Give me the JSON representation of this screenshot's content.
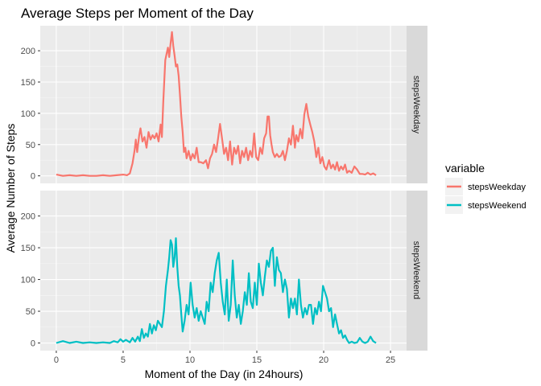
{
  "chart_data": {
    "type": "line",
    "title": "Average Steps per Moment of the Day",
    "xlabel": "Moment of the Day (in 24hours)",
    "ylabel": "Average Number of Steps",
    "xlim": [
      -1.2,
      26.2
    ],
    "ylim": [
      -12,
      240
    ],
    "x_ticks": [
      0,
      5,
      10,
      15,
      20,
      25
    ],
    "y_ticks": [
      0,
      50,
      100,
      150,
      200
    ],
    "grid": true,
    "facets": [
      "stepsWeekday",
      "stepsWeekend"
    ],
    "legend": {
      "title": "variable",
      "position": "right",
      "entries": [
        "stepsWeekday",
        "stepsWeekend"
      ]
    },
    "series": [
      {
        "name": "stepsWeekday",
        "color": "#F8766D",
        "points": [
          [
            0.0,
            2
          ],
          [
            0.5,
            0
          ],
          [
            1.0,
            1
          ],
          [
            1.5,
            0
          ],
          [
            2.0,
            1
          ],
          [
            2.5,
            0
          ],
          [
            3.0,
            0
          ],
          [
            3.5,
            1
          ],
          [
            4.0,
            0
          ],
          [
            4.5,
            1
          ],
          [
            5.0,
            2
          ],
          [
            5.3,
            1
          ],
          [
            5.5,
            4
          ],
          [
            5.7,
            20
          ],
          [
            5.85,
            40
          ],
          [
            5.95,
            58
          ],
          [
            6.05,
            38
          ],
          [
            6.2,
            65
          ],
          [
            6.3,
            76
          ],
          [
            6.45,
            55
          ],
          [
            6.6,
            62
          ],
          [
            6.75,
            45
          ],
          [
            6.9,
            70
          ],
          [
            7.05,
            58
          ],
          [
            7.2,
            65
          ],
          [
            7.35,
            60
          ],
          [
            7.5,
            68
          ],
          [
            7.65,
            55
          ],
          [
            7.8,
            82
          ],
          [
            7.9,
            62
          ],
          [
            8.0,
            118
          ],
          [
            8.15,
            185
          ],
          [
            8.25,
            195
          ],
          [
            8.35,
            205
          ],
          [
            8.45,
            190
          ],
          [
            8.55,
            212
          ],
          [
            8.65,
            230
          ],
          [
            8.75,
            208
          ],
          [
            8.85,
            192
          ],
          [
            8.95,
            175
          ],
          [
            9.05,
            178
          ],
          [
            9.15,
            160
          ],
          [
            9.25,
            130
          ],
          [
            9.35,
            95
          ],
          [
            9.45,
            70
          ],
          [
            9.55,
            38
          ],
          [
            9.65,
            45
          ],
          [
            9.75,
            28
          ],
          [
            9.9,
            40
          ],
          [
            10.05,
            25
          ],
          [
            10.2,
            35
          ],
          [
            10.35,
            28
          ],
          [
            10.5,
            45
          ],
          [
            10.65,
            22
          ],
          [
            10.8,
            22
          ],
          [
            11.0,
            20
          ],
          [
            11.2,
            25
          ],
          [
            11.35,
            12
          ],
          [
            11.5,
            28
          ],
          [
            11.65,
            35
          ],
          [
            11.8,
            50
          ],
          [
            11.95,
            38
          ],
          [
            12.1,
            60
          ],
          [
            12.25,
            83
          ],
          [
            12.4,
            60
          ],
          [
            12.55,
            35
          ],
          [
            12.7,
            45
          ],
          [
            12.85,
            25
          ],
          [
            13.0,
            55
          ],
          [
            13.15,
            18
          ],
          [
            13.3,
            45
          ],
          [
            13.45,
            35
          ],
          [
            13.6,
            48
          ],
          [
            13.75,
            20
          ],
          [
            13.9,
            40
          ],
          [
            14.05,
            30
          ],
          [
            14.2,
            45
          ],
          [
            14.35,
            25
          ],
          [
            14.5,
            40
          ],
          [
            14.65,
            30
          ],
          [
            14.8,
            68
          ],
          [
            14.95,
            30
          ],
          [
            15.1,
            25
          ],
          [
            15.25,
            45
          ],
          [
            15.4,
            35
          ],
          [
            15.55,
            60
          ],
          [
            15.7,
            68
          ],
          [
            15.8,
            95
          ],
          [
            15.9,
            95
          ],
          [
            16.0,
            65
          ],
          [
            16.1,
            50
          ],
          [
            16.2,
            38
          ],
          [
            16.35,
            30
          ],
          [
            16.5,
            35
          ],
          [
            16.65,
            30
          ],
          [
            16.8,
            32
          ],
          [
            16.95,
            40
          ],
          [
            17.1,
            25
          ],
          [
            17.25,
            40
          ],
          [
            17.4,
            60
          ],
          [
            17.55,
            50
          ],
          [
            17.7,
            80
          ],
          [
            17.85,
            45
          ],
          [
            17.95,
            65
          ],
          [
            18.1,
            55
          ],
          [
            18.25,
            75
          ],
          [
            18.4,
            60
          ],
          [
            18.55,
            98
          ],
          [
            18.7,
            115
          ],
          [
            18.85,
            95
          ],
          [
            19.0,
            82
          ],
          [
            19.15,
            70
          ],
          [
            19.3,
            55
          ],
          [
            19.45,
            30
          ],
          [
            19.6,
            45
          ],
          [
            19.75,
            20
          ],
          [
            19.9,
            30
          ],
          [
            20.05,
            15
          ],
          [
            20.2,
            10
          ],
          [
            20.4,
            25
          ],
          [
            20.55,
            12
          ],
          [
            20.7,
            18
          ],
          [
            20.85,
            10
          ],
          [
            21.0,
            22
          ],
          [
            21.15,
            8
          ],
          [
            21.3,
            15
          ],
          [
            21.45,
            10
          ],
          [
            21.6,
            18
          ],
          [
            21.75,
            5
          ],
          [
            21.9,
            8
          ],
          [
            22.1,
            5
          ],
          [
            22.3,
            15
          ],
          [
            22.5,
            10
          ],
          [
            22.7,
            3
          ],
          [
            22.9,
            3
          ],
          [
            23.1,
            2
          ],
          [
            23.3,
            5
          ],
          [
            23.5,
            2
          ],
          [
            23.7,
            4
          ],
          [
            23.92,
            1
          ]
        ]
      },
      {
        "name": "stepsWeekend",
        "color": "#00BFC4",
        "points": [
          [
            0.0,
            0
          ],
          [
            0.5,
            3
          ],
          [
            1.0,
            0
          ],
          [
            1.5,
            2
          ],
          [
            2.0,
            0
          ],
          [
            2.5,
            1
          ],
          [
            3.0,
            0
          ],
          [
            3.5,
            1
          ],
          [
            4.0,
            0
          ],
          [
            4.3,
            3
          ],
          [
            4.6,
            1
          ],
          [
            4.8,
            6
          ],
          [
            5.0,
            2
          ],
          [
            5.2,
            5
          ],
          [
            5.5,
            1
          ],
          [
            5.7,
            8
          ],
          [
            5.9,
            2
          ],
          [
            6.1,
            10
          ],
          [
            6.25,
            3
          ],
          [
            6.4,
            22
          ],
          [
            6.55,
            8
          ],
          [
            6.7,
            15
          ],
          [
            6.85,
            10
          ],
          [
            7.0,
            30
          ],
          [
            7.15,
            15
          ],
          [
            7.3,
            28
          ],
          [
            7.45,
            20
          ],
          [
            7.6,
            35
          ],
          [
            7.75,
            30
          ],
          [
            7.9,
            25
          ],
          [
            8.05,
            50
          ],
          [
            8.2,
            90
          ],
          [
            8.35,
            115
          ],
          [
            8.45,
            135
          ],
          [
            8.55,
            162
          ],
          [
            8.65,
            155
          ],
          [
            8.75,
            120
          ],
          [
            8.85,
            135
          ],
          [
            8.95,
            165
          ],
          [
            9.05,
            120
          ],
          [
            9.15,
            90
          ],
          [
            9.25,
            75
          ],
          [
            9.35,
            45
          ],
          [
            9.45,
            18
          ],
          [
            9.6,
            35
          ],
          [
            9.75,
            60
          ],
          [
            9.9,
            45
          ],
          [
            10.05,
            95
          ],
          [
            10.2,
            60
          ],
          [
            10.35,
            40
          ],
          [
            10.5,
            55
          ],
          [
            10.65,
            35
          ],
          [
            10.8,
            50
          ],
          [
            10.95,
            40
          ],
          [
            11.1,
            30
          ],
          [
            11.25,
            65
          ],
          [
            11.4,
            50
          ],
          [
            11.55,
            95
          ],
          [
            11.7,
            80
          ],
          [
            11.85,
            110
          ],
          [
            12.0,
            130
          ],
          [
            12.15,
            142
          ],
          [
            12.3,
            95
          ],
          [
            12.45,
            65
          ],
          [
            12.6,
            45
          ],
          [
            12.75,
            100
          ],
          [
            12.9,
            35
          ],
          [
            13.05,
            60
          ],
          [
            13.2,
            130
          ],
          [
            13.35,
            75
          ],
          [
            13.5,
            40
          ],
          [
            13.65,
            60
          ],
          [
            13.8,
            30
          ],
          [
            13.95,
            50
          ],
          [
            14.1,
            80
          ],
          [
            14.25,
            60
          ],
          [
            14.4,
            110
          ],
          [
            14.55,
            65
          ],
          [
            14.7,
            55
          ],
          [
            14.85,
            95
          ],
          [
            15.0,
            60
          ],
          [
            15.15,
            125
          ],
          [
            15.3,
            95
          ],
          [
            15.45,
            75
          ],
          [
            15.6,
            105
          ],
          [
            15.75,
            130
          ],
          [
            15.9,
            120
          ],
          [
            16.05,
            145
          ],
          [
            16.2,
            150
          ],
          [
            16.35,
            90
          ],
          [
            16.5,
            135
          ],
          [
            16.65,
            115
          ],
          [
            16.8,
            110
          ],
          [
            16.95,
            80
          ],
          [
            17.1,
            100
          ],
          [
            17.25,
            85
          ],
          [
            17.4,
            40
          ],
          [
            17.55,
            70
          ],
          [
            17.7,
            55
          ],
          [
            17.85,
            70
          ],
          [
            18.0,
            45
          ],
          [
            18.15,
            100
          ],
          [
            18.3,
            60
          ],
          [
            18.45,
            40
          ],
          [
            18.6,
            55
          ],
          [
            18.75,
            45
          ],
          [
            18.9,
            60
          ],
          [
            19.05,
            60
          ],
          [
            19.2,
            30
          ],
          [
            19.35,
            55
          ],
          [
            19.5,
            45
          ],
          [
            19.65,
            65
          ],
          [
            19.8,
            50
          ],
          [
            19.95,
            90
          ],
          [
            20.1,
            80
          ],
          [
            20.25,
            70
          ],
          [
            20.4,
            50
          ],
          [
            20.55,
            55
          ],
          [
            20.7,
            25
          ],
          [
            20.85,
            45
          ],
          [
            21.0,
            30
          ],
          [
            21.15,
            15
          ],
          [
            21.3,
            20
          ],
          [
            21.45,
            8
          ],
          [
            21.6,
            12
          ],
          [
            21.75,
            5
          ],
          [
            21.9,
            0
          ],
          [
            22.1,
            2
          ],
          [
            22.3,
            0
          ],
          [
            22.5,
            1
          ],
          [
            22.7,
            8
          ],
          [
            22.9,
            2
          ],
          [
            23.1,
            0
          ],
          [
            23.3,
            2
          ],
          [
            23.5,
            10
          ],
          [
            23.7,
            3
          ],
          [
            23.92,
            0
          ]
        ]
      }
    ]
  }
}
